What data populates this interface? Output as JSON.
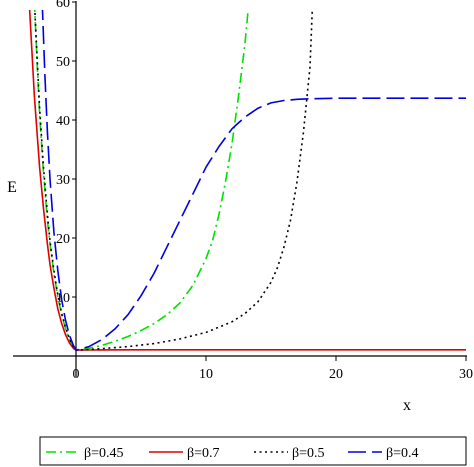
{
  "chart_data": {
    "type": "line",
    "xlabel": "x",
    "ylabel": "E",
    "xlim": [
      -5,
      30
    ],
    "ylim": [
      0,
      60
    ],
    "x_origin_axis": 0,
    "y_axis_at_x": 0,
    "xticks": [
      {
        "value": 0,
        "label": "0"
      },
      {
        "value": 10,
        "label": "10"
      },
      {
        "value": 20,
        "label": "20"
      },
      {
        "value": 30,
        "label": "30"
      }
    ],
    "yticks": [
      {
        "value": 10,
        "label": "10"
      },
      {
        "value": 20,
        "label": "20"
      },
      {
        "value": 30,
        "label": "30"
      },
      {
        "value": 40,
        "label": "40"
      },
      {
        "value": 50,
        "label": "50"
      },
      {
        "value": 60,
        "label": "60"
      }
    ],
    "grid": false,
    "legend_position": "bottom",
    "series": [
      {
        "name": "β=0.45",
        "color": "#00e000",
        "dash": "dashdot",
        "x": [
          -3.2,
          -3,
          -2.8,
          -2.5,
          -2.2,
          -2,
          -1.7,
          -1.4,
          -1.1,
          -0.8,
          -0.5,
          -0.2,
          0,
          0.5,
          1,
          2,
          3,
          4,
          5,
          6,
          7,
          8,
          9,
          10,
          10.5,
          11,
          11.5,
          12,
          12.5,
          13,
          13.3
        ],
        "y": [
          60,
          50,
          41,
          31,
          23,
          19,
          14,
          10,
          7,
          4.6,
          2.8,
          1.6,
          1,
          1.1,
          1.3,
          1.8,
          2.5,
          3.3,
          4.3,
          5.5,
          7,
          9,
          12,
          16.5,
          19.5,
          24,
          29.5,
          36,
          44,
          53,
          60
        ]
      },
      {
        "name": "β=0.7",
        "color": "#e00000",
        "dash": "solid",
        "x": [
          -3.6,
          -3.4,
          -3.2,
          -3,
          -2.8,
          -2.5,
          -2.2,
          -2,
          -1.7,
          -1.4,
          -1.1,
          -0.8,
          -0.5,
          -0.2,
          0,
          1,
          2,
          5,
          10,
          20,
          30
        ],
        "y": [
          60,
          52,
          44,
          38,
          32,
          25,
          19,
          15.5,
          11.5,
          8,
          5.5,
          3.6,
          2.2,
          1.3,
          1,
          1.02,
          1.04,
          1.05,
          1.05,
          1.05,
          1.05
        ]
      },
      {
        "name": "β=0.5",
        "color": "#000000",
        "dash": "dotted",
        "x": [
          -3.2,
          -3,
          -2.8,
          -2.5,
          -2.2,
          -2,
          -1.7,
          -1.4,
          -1.1,
          -0.8,
          -0.5,
          -0.2,
          0,
          1,
          2,
          4,
          6,
          8,
          10,
          12,
          13,
          14,
          15,
          15.5,
          16,
          16.5,
          17,
          17.5,
          18,
          18.2
        ],
        "y": [
          60,
          51,
          42,
          32,
          24,
          19.5,
          14.5,
          10.3,
          7.2,
          4.8,
          2.9,
          1.6,
          1,
          1.1,
          1.25,
          1.6,
          2.1,
          2.9,
          4,
          5.8,
          7.2,
          9.2,
          12.5,
          15,
          18.5,
          23,
          29.5,
          38,
          49,
          60
        ]
      },
      {
        "name": "β=0.4",
        "color": "#0000e0",
        "dash": "longdash",
        "x": [
          -2.6,
          -2.4,
          -2.2,
          -2,
          -1.7,
          -1.4,
          -1.1,
          -0.8,
          -0.5,
          -0.2,
          0,
          1,
          2,
          3,
          4,
          5,
          6,
          7,
          8,
          9,
          10,
          11,
          12,
          13,
          14,
          15,
          16,
          17,
          18,
          20,
          22,
          25,
          28,
          30
        ],
        "y": [
          60,
          48,
          38,
          30,
          21,
          14.5,
          9.5,
          6,
          3.5,
          1.8,
          1,
          1.6,
          2.8,
          4.6,
          7,
          10.2,
          14,
          18.5,
          23,
          27.5,
          32,
          35.5,
          38.5,
          40.5,
          42,
          42.9,
          43.3,
          43.5,
          43.6,
          43.7,
          43.7,
          43.7,
          43.7,
          43.7
        ]
      }
    ]
  }
}
